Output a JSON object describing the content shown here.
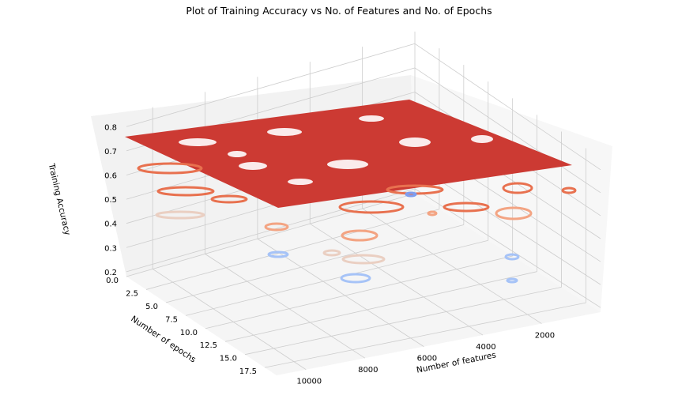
{
  "chart_data": {
    "type": "surface",
    "title": "Plot of Training Accuracy vs No. of Features and No. of Epochs",
    "xlabel": "Number of features",
    "ylabel": "Number of epochs",
    "zlabel": "Training Accuracy",
    "x_ticks": [
      "2000",
      "4000",
      "6000",
      "8000",
      "10000"
    ],
    "y_ticks": [
      "0.0",
      "2.5",
      "5.0",
      "7.5",
      "10.0",
      "12.5",
      "15.0",
      "17.5"
    ],
    "z_ticks": [
      "0.2",
      "0.3",
      "0.4",
      "0.5",
      "0.6",
      "0.7",
      "0.8"
    ],
    "xlim": [
      0,
      11000
    ],
    "ylim": [
      0,
      19
    ],
    "zlim": [
      0.18,
      0.85
    ],
    "plateau_value": 0.75,
    "colormap": "coolwarm",
    "colors": {
      "plateau": "#cc3a33",
      "high": "#e8714f",
      "mid_high": "#f3a483",
      "mid": "#eacfc2",
      "low": "#a6c3f7",
      "lowest": "#7e9ef0",
      "pane": "#f2f2f2",
      "pane_side": "#f7f7f7",
      "grid": "#cdcdcd"
    },
    "grid": true
  }
}
